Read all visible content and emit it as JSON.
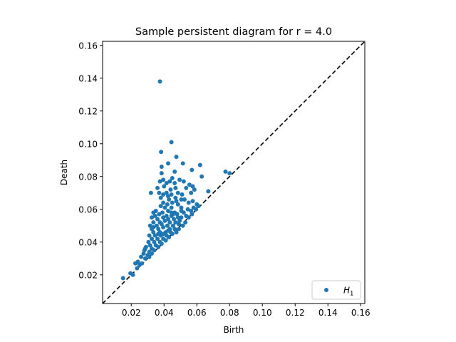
{
  "chart_data": {
    "type": "scatter",
    "title": "Sample persistent diagram for r = 4.0",
    "xlabel": "Birth",
    "ylabel": "Death",
    "xlim": [
      0.0025,
      0.1625
    ],
    "ylim": [
      0.0025,
      0.1625
    ],
    "xticks": [
      0.02,
      0.04,
      0.06,
      0.08,
      0.1,
      0.12,
      0.14,
      0.16
    ],
    "yticks": [
      0.02,
      0.04,
      0.06,
      0.08,
      0.1,
      0.12,
      0.14,
      0.16
    ],
    "xtick_labels": [
      "0.02",
      "0.04",
      "0.06",
      "0.08",
      "0.10",
      "0.12",
      "0.14",
      "0.16"
    ],
    "ytick_labels": [
      "0.02",
      "0.04",
      "0.06",
      "0.08",
      "0.10",
      "0.12",
      "0.14",
      "0.16"
    ],
    "diagonal": {
      "style": "dashed",
      "color": "#000000"
    },
    "legend": {
      "position": "bottom-right",
      "label_main": "H",
      "label_sub": "1"
    },
    "grid": false,
    "series": [
      {
        "name": "H1",
        "color": "#1f77b4",
        "points": [
          [
            0.0375,
            0.138
          ],
          [
            0.0445,
            0.101
          ],
          [
            0.0382,
            0.095
          ],
          [
            0.0475,
            0.092
          ],
          [
            0.062,
            0.087
          ],
          [
            0.0385,
            0.086
          ],
          [
            0.0425,
            0.088
          ],
          [
            0.0515,
            0.088
          ],
          [
            0.0385,
            0.082
          ],
          [
            0.057,
            0.084
          ],
          [
            0.0465,
            0.083
          ],
          [
            0.0775,
            0.083
          ],
          [
            0.08,
            0.082
          ],
          [
            0.063,
            0.08
          ],
          [
            0.0395,
            0.078
          ],
          [
            0.045,
            0.079
          ],
          [
            0.0495,
            0.078
          ],
          [
            0.0375,
            0.077
          ],
          [
            0.0415,
            0.076
          ],
          [
            0.0435,
            0.077
          ],
          [
            0.0465,
            0.076
          ],
          [
            0.052,
            0.077
          ],
          [
            0.0555,
            0.075
          ],
          [
            0.0575,
            0.074
          ],
          [
            0.032,
            0.07
          ],
          [
            0.036,
            0.073
          ],
          [
            0.04,
            0.074
          ],
          [
            0.044,
            0.072
          ],
          [
            0.047,
            0.073
          ],
          [
            0.0535,
            0.073
          ],
          [
            0.0585,
            0.072
          ],
          [
            0.067,
            0.071
          ],
          [
            0.037,
            0.07
          ],
          [
            0.0395,
            0.069
          ],
          [
            0.0415,
            0.07
          ],
          [
            0.0445,
            0.069
          ],
          [
            0.0485,
            0.07
          ],
          [
            0.051,
            0.069
          ],
          [
            0.0565,
            0.07
          ],
          [
            0.038,
            0.067
          ],
          [
            0.043,
            0.066
          ],
          [
            0.047,
            0.067
          ],
          [
            0.0525,
            0.066
          ],
          [
            0.0575,
            0.065
          ],
          [
            0.0395,
            0.064
          ],
          [
            0.042,
            0.063
          ],
          [
            0.045,
            0.064
          ],
          [
            0.0485,
            0.063
          ],
          [
            0.055,
            0.064
          ],
          [
            0.06,
            0.063
          ],
          [
            0.061,
            0.062
          ],
          [
            0.038,
            0.062
          ],
          [
            0.0405,
            0.061
          ],
          [
            0.0445,
            0.061
          ],
          [
            0.0505,
            0.061
          ],
          [
            0.0545,
            0.06
          ],
          [
            0.058,
            0.061
          ],
          [
            0.035,
            0.059
          ],
          [
            0.039,
            0.058
          ],
          [
            0.0425,
            0.059
          ],
          [
            0.0465,
            0.058
          ],
          [
            0.052,
            0.058
          ],
          [
            0.0565,
            0.059
          ],
          [
            0.0595,
            0.06
          ],
          [
            0.0335,
            0.058
          ],
          [
            0.037,
            0.057
          ],
          [
            0.0415,
            0.056
          ],
          [
            0.0445,
            0.056
          ],
          [
            0.048,
            0.057
          ],
          [
            0.0535,
            0.056
          ],
          [
            0.057,
            0.057
          ],
          [
            0.0325,
            0.055
          ],
          [
            0.036,
            0.054
          ],
          [
            0.0395,
            0.055
          ],
          [
            0.0425,
            0.054
          ],
          [
            0.046,
            0.054
          ],
          [
            0.0505,
            0.055
          ],
          [
            0.055,
            0.055
          ],
          [
            0.0335,
            0.052
          ],
          [
            0.0375,
            0.052
          ],
          [
            0.0405,
            0.053
          ],
          [
            0.0435,
            0.052
          ],
          [
            0.047,
            0.052
          ],
          [
            0.0495,
            0.053
          ],
          [
            0.053,
            0.052
          ],
          [
            0.0315,
            0.05
          ],
          [
            0.0355,
            0.05
          ],
          [
            0.0385,
            0.051
          ],
          [
            0.042,
            0.05
          ],
          [
            0.0455,
            0.05
          ],
          [
            0.049,
            0.051
          ],
          [
            0.0515,
            0.05
          ],
          [
            0.0325,
            0.048
          ],
          [
            0.0365,
            0.048
          ],
          [
            0.0395,
            0.049
          ],
          [
            0.0435,
            0.048
          ],
          [
            0.0465,
            0.048
          ],
          [
            0.049,
            0.048
          ],
          [
            0.0335,
            0.046
          ],
          [
            0.0375,
            0.046
          ],
          [
            0.041,
            0.046
          ],
          [
            0.044,
            0.046
          ],
          [
            0.0475,
            0.046
          ],
          [
            0.031,
            0.044
          ],
          [
            0.0345,
            0.044
          ],
          [
            0.038,
            0.044
          ],
          [
            0.0415,
            0.044
          ],
          [
            0.045,
            0.045
          ],
          [
            0.0325,
            0.042
          ],
          [
            0.036,
            0.042
          ],
          [
            0.0395,
            0.042
          ],
          [
            0.043,
            0.043
          ],
          [
            0.0305,
            0.04
          ],
          [
            0.034,
            0.04
          ],
          [
            0.0375,
            0.04
          ],
          [
            0.041,
            0.041
          ],
          [
            0.0315,
            0.038
          ],
          [
            0.035,
            0.038
          ],
          [
            0.0385,
            0.039
          ],
          [
            0.029,
            0.037
          ],
          [
            0.0325,
            0.036
          ],
          [
            0.0365,
            0.037
          ],
          [
            0.028,
            0.035
          ],
          [
            0.031,
            0.034
          ],
          [
            0.034,
            0.035
          ],
          [
            0.0275,
            0.033
          ],
          [
            0.03,
            0.032
          ],
          [
            0.0325,
            0.033
          ],
          [
            0.026,
            0.031
          ],
          [
            0.0285,
            0.03
          ],
          [
            0.031,
            0.031
          ],
          [
            0.024,
            0.028
          ],
          [
            0.0265,
            0.027
          ],
          [
            0.0225,
            0.027
          ],
          [
            0.025,
            0.026
          ],
          [
            0.0235,
            0.024
          ],
          [
            0.0195,
            0.021
          ],
          [
            0.021,
            0.02
          ],
          [
            0.015,
            0.018
          ],
          [
            0.0455,
            0.057
          ],
          [
            0.0485,
            0.055
          ],
          [
            0.0425,
            0.047
          ],
          [
            0.0395,
            0.045
          ],
          [
            0.0505,
            0.059
          ],
          [
            0.0445,
            0.058
          ],
          [
            0.0335,
            0.049
          ],
          [
            0.0365,
            0.045
          ],
          [
            0.0475,
            0.065
          ],
          [
            0.0425,
            0.068
          ],
          [
            0.0505,
            0.066
          ],
          [
            0.0345,
            0.056
          ],
          [
            0.0285,
            0.036
          ]
        ]
      }
    ]
  }
}
